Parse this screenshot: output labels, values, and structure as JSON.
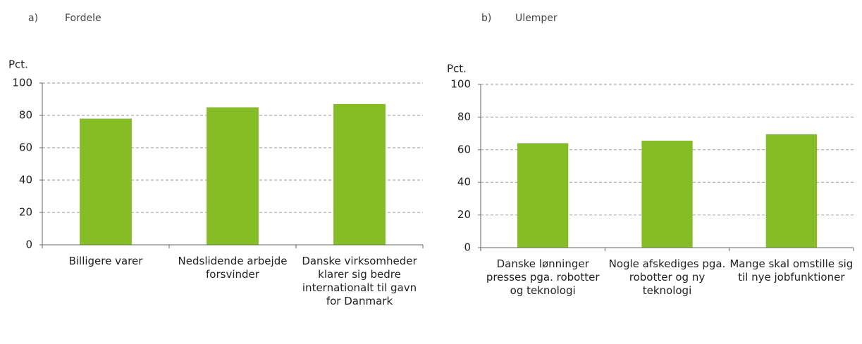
{
  "chart_data": [
    {
      "type": "bar",
      "panel": "a)",
      "title": "Fordele",
      "ylabel": "Pct.",
      "categories": [
        "Billigere varer",
        "Nedslidende arbejde forsvinder",
        "Danske virksomheder klarer sig bedre internationalt til gavn for Danmark"
      ],
      "values": [
        78,
        85,
        87
      ],
      "color": "#86bc25",
      "ylim": [
        0,
        100
      ],
      "yticks": [
        0,
        20,
        40,
        60,
        80,
        100
      ],
      "grid": true
    },
    {
      "type": "bar",
      "panel": "b)",
      "title": "Ulemper",
      "ylabel": "Pct.",
      "categories": [
        "Danske lønninger presses pga. robotter og teknologi",
        "Nogle afskediges pga. robotter og ny teknologi",
        "Mange skal omstille sig til nye jobfunktioner"
      ],
      "values": [
        64,
        65.5,
        69.5
      ],
      "color": "#86bc25",
      "ylim": [
        0,
        100
      ],
      "yticks": [
        0,
        20,
        40,
        60,
        80,
        100
      ],
      "grid": true
    }
  ]
}
